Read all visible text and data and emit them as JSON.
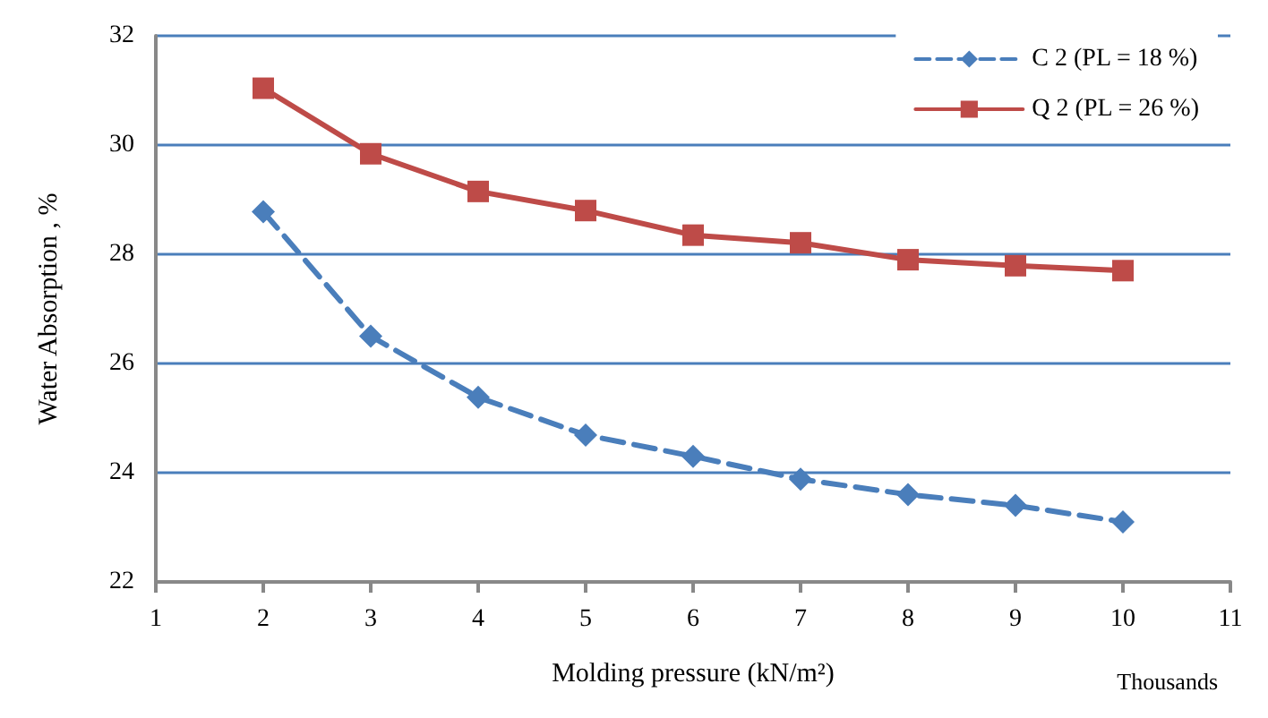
{
  "chart_data": {
    "type": "line",
    "xlabel": "Molding pressure (kN/m²)",
    "ylabel": "Water Absorption , %",
    "annotations": [
      "Thousands"
    ],
    "x": [
      2,
      3,
      4,
      5,
      6,
      7,
      8,
      9,
      10
    ],
    "series": [
      {
        "name": "C 2 (PL = 18 %)",
        "color": "#4a7ebb",
        "marker": "diamond",
        "line_style": "dashed",
        "values": [
          28.78,
          26.5,
          25.38,
          24.69,
          24.3,
          23.88,
          23.6,
          23.4,
          23.1
        ]
      },
      {
        "name": "Q 2 (PL = 26 %)",
        "color": "#be4b48",
        "marker": "square",
        "line_style": "solid",
        "values": [
          31.04,
          29.84,
          29.15,
          28.8,
          28.35,
          28.21,
          27.9,
          27.79,
          27.7
        ]
      }
    ],
    "xlim": [
      1,
      11
    ],
    "xticks": [
      1,
      2,
      3,
      4,
      5,
      6,
      7,
      8,
      9,
      10,
      11
    ],
    "ylim": [
      22,
      32
    ],
    "yticks": [
      22,
      24,
      26,
      28,
      30,
      32
    ],
    "grid": "y",
    "legend": "top right"
  }
}
